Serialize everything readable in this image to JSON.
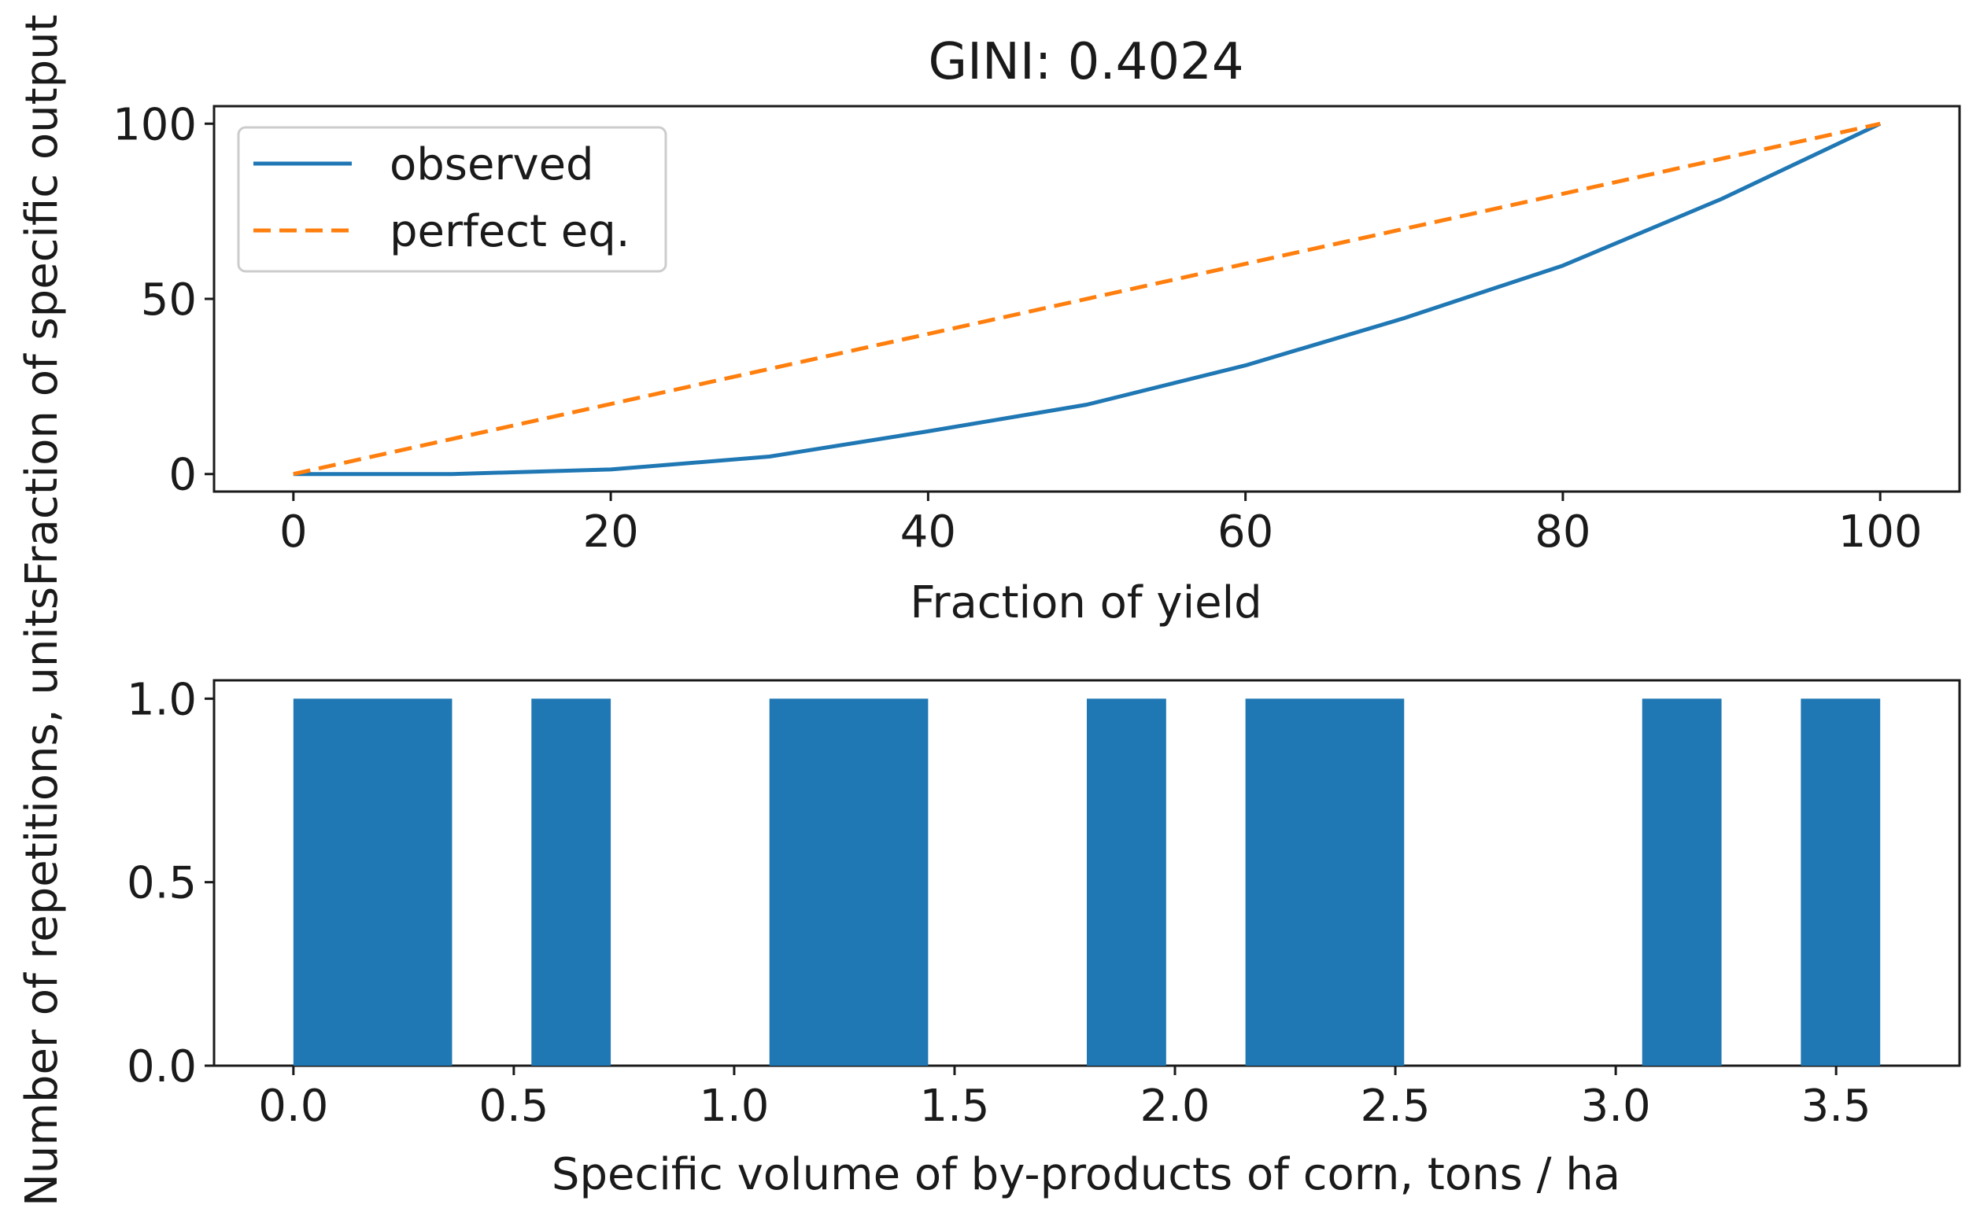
{
  "chart_data": [
    {
      "type": "line",
      "title": "GINI: 0.4024",
      "xlabel": "Fraction of yield",
      "ylabel": "Fraction of specific output",
      "xlim": [
        -5,
        105
      ],
      "ylim": [
        -5,
        105
      ],
      "xticks": [
        0,
        20,
        40,
        60,
        80,
        100
      ],
      "yticks": [
        0,
        50,
        100
      ],
      "legend_position": "upper-left",
      "series": [
        {
          "name": "observed",
          "style": "solid",
          "color": "#1f77b4",
          "x": [
            0,
            10,
            20,
            30,
            40,
            50,
            60,
            70,
            80,
            90,
            100
          ],
          "y": [
            0,
            0,
            1.3,
            5,
            12.2,
            19.8,
            31,
            44.5,
            59.5,
            78.5,
            100
          ]
        },
        {
          "name": "perfect eq.",
          "style": "dashed",
          "color": "#ff7f0e",
          "x": [
            0,
            100
          ],
          "y": [
            0,
            100
          ]
        }
      ]
    },
    {
      "type": "bar",
      "title": "",
      "xlabel": "Specific volume of by-products of corn, tons / ha",
      "ylabel": "Number of repetitions, units",
      "xlim": [
        -0.18,
        3.78
      ],
      "ylim": [
        0,
        1.05
      ],
      "xticks": [
        "0.0",
        "0.5",
        "1.0",
        "1.5",
        "2.0",
        "2.5",
        "3.0",
        "3.5"
      ],
      "yticks": [
        "0.0",
        "0.5",
        "1.0"
      ],
      "color": "#1f77b4",
      "bins": [
        {
          "start": 0.0,
          "end": 0.36,
          "count": 1
        },
        {
          "start": 0.54,
          "end": 0.72,
          "count": 1
        },
        {
          "start": 1.08,
          "end": 1.44,
          "count": 1
        },
        {
          "start": 1.8,
          "end": 1.98,
          "count": 1
        },
        {
          "start": 2.16,
          "end": 2.52,
          "count": 1
        },
        {
          "start": 3.06,
          "end": 3.24,
          "count": 1
        },
        {
          "start": 3.42,
          "end": 3.6,
          "count": 1
        }
      ]
    }
  ]
}
